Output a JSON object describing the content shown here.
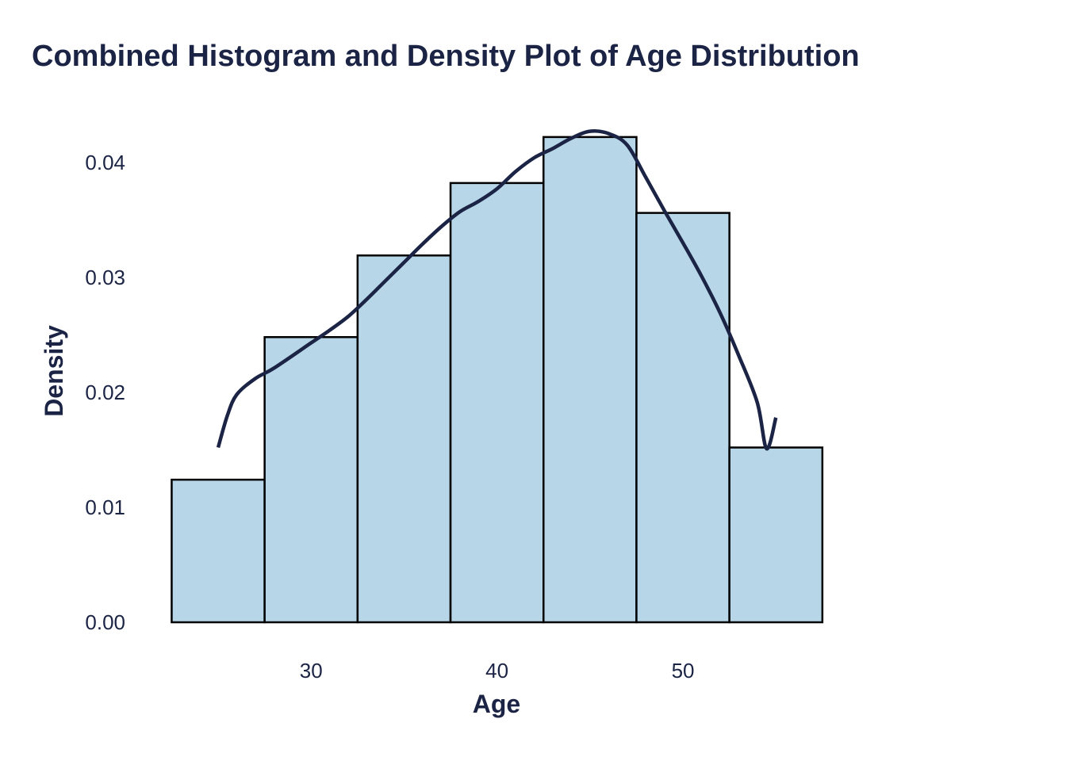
{
  "chart_data": {
    "type": "bar",
    "title": "Combined Histogram and Density Plot of Age Distribution",
    "xlabel": "Age",
    "ylabel": "Density",
    "xlim": [
      21.5,
      59.0
    ],
    "ylim": [
      0,
      0.0455
    ],
    "xticks": [
      30,
      40,
      50
    ],
    "yticks": [
      0.0,
      0.01,
      0.02,
      0.03,
      0.04
    ],
    "ytick_labels": [
      "0.00",
      "0.01",
      "0.02",
      "0.03",
      "0.04"
    ],
    "grid": false,
    "bins": [
      {
        "x0": 22.5,
        "x1": 27.5,
        "value": 0.0124
      },
      {
        "x0": 27.5,
        "x1": 32.5,
        "value": 0.0248
      },
      {
        "x0": 32.5,
        "x1": 37.5,
        "value": 0.0319
      },
      {
        "x0": 37.5,
        "x1": 42.5,
        "value": 0.0382
      },
      {
        "x0": 42.5,
        "x1": 47.5,
        "value": 0.0422
      },
      {
        "x0": 47.5,
        "x1": 52.5,
        "value": 0.0356
      },
      {
        "x0": 52.5,
        "x1": 57.5,
        "value": 0.0152
      }
    ],
    "density_line": {
      "x": [
        25.0,
        25.5,
        26.0,
        27.0,
        28.0,
        30.0,
        31.0,
        32.0,
        33.0,
        34.0,
        35.0,
        36.0,
        37.0,
        38.0,
        39.0,
        40.0,
        41.0,
        42.0,
        43.0,
        44.0,
        45.0,
        46.0,
        47.0,
        48.0,
        49.0,
        50.0,
        51.0,
        52.0,
        53.0,
        54.0,
        54.5,
        55.0
      ],
      "y": [
        0.0152,
        0.018,
        0.0198,
        0.0212,
        0.0221,
        0.0243,
        0.0254,
        0.0266,
        0.0281,
        0.0297,
        0.0313,
        0.0329,
        0.0344,
        0.0357,
        0.0366,
        0.0377,
        0.0392,
        0.0404,
        0.0412,
        0.0421,
        0.0427,
        0.0425,
        0.0415,
        0.0387,
        0.0358,
        0.033,
        0.0301,
        0.0269,
        0.0232,
        0.0191,
        0.0151,
        0.0178
      ]
    },
    "colors": {
      "bar_fill": "#b7d6e7",
      "bar_edge": "#000000",
      "line": "#1b2444",
      "text": "#1b2444"
    }
  }
}
